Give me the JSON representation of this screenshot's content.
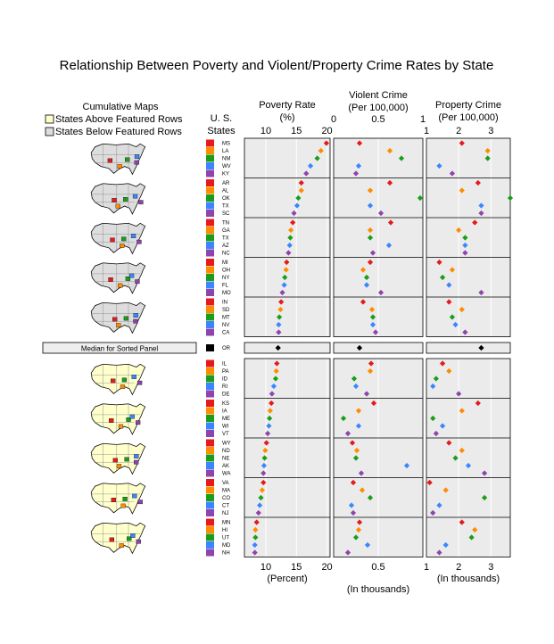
{
  "chart_data": {
    "type": "scatter",
    "title": "Relationship Between Poverty and Violent/Property Crime Rates by State",
    "maps_header": "Cumulative Maps",
    "legend": [
      {
        "label": "States Above Featured Rows",
        "color": "#ffffcc"
      },
      {
        "label": "States Below Featured Rows",
        "color": "#dddddd"
      }
    ],
    "states_header": [
      "U. S.",
      "States"
    ],
    "median_label": "Median for Sorted Panel",
    "row_colors": [
      "#e41a1c",
      "#ff8c00",
      "#1a9e1a",
      "#3a86ff",
      "#8e44ad"
    ],
    "median_color": "#000000",
    "panels": [
      {
        "key": "poverty",
        "title": [
          "Poverty Rate",
          "(%)"
        ],
        "xlabel": "(Percent)",
        "xlim": [
          6.5,
          20.5
        ],
        "ticks": [
          10,
          15,
          20
        ],
        "tick_labels": [
          "10",
          "15",
          "20"
        ],
        "axis_top": true,
        "axis_bottom": true
      },
      {
        "key": "violent",
        "title": [
          "Violent Crime",
          "(Per 100,000)"
        ],
        "xlabel": "(In thousands)",
        "xlim": [
          0,
          1
        ],
        "ticks": [
          0,
          0.5,
          1
        ],
        "tick_labels": [
          "0",
          "0.5",
          "1"
        ],
        "axis_top": true,
        "axis_bottom": true,
        "bottom_ticks": [
          0.5
        ],
        "bottom_tick_labels": [
          "0.5"
        ]
      },
      {
        "key": "property",
        "title": [
          "Property Crime",
          "(Per 100,000)"
        ],
        "xlabel": "(In thousands)",
        "xlim": [
          1,
          3.6
        ],
        "ticks": [
          1,
          2,
          3
        ],
        "tick_labels": [
          "1",
          "2",
          "3"
        ],
        "axis_top": true,
        "axis_bottom": true
      }
    ],
    "groups": [
      {
        "states": [
          "MS",
          "LA",
          "NM",
          "WV",
          "KY"
        ],
        "poverty": [
          19.9,
          19.0,
          18.4,
          17.3,
          16.6
        ],
        "violent": [
          0.29,
          0.63,
          0.76,
          0.28,
          0.25
        ],
        "property": [
          2.1,
          2.9,
          2.9,
          1.4,
          1.8
        ]
      },
      {
        "states": [
          "AR",
          "AL",
          "OK",
          "TX",
          "SC"
        ],
        "poverty": [
          15.8,
          15.8,
          15.3,
          15.1,
          14.6
        ],
        "violent": [
          0.63,
          0.41,
          0.97,
          0.41,
          0.53
        ],
        "property": [
          2.6,
          2.1,
          3.6,
          2.7,
          2.7
        ]
      },
      {
        "states": [
          "TN",
          "GA",
          "TX",
          "AZ",
          "NC"
        ],
        "poverty": [
          14.4,
          14.1,
          14.0,
          13.9,
          13.7
        ],
        "violent": [
          0.64,
          0.41,
          0.41,
          0.62,
          0.44
        ],
        "property": [
          2.5,
          2.0,
          2.2,
          2.2,
          2.2
        ]
      },
      {
        "states": [
          "MI",
          "OH",
          "NY",
          "FL",
          "MO"
        ],
        "poverty": [
          13.4,
          13.3,
          13.1,
          13.0,
          12.7
        ],
        "violent": [
          0.41,
          0.33,
          0.37,
          0.37,
          0.53
        ],
        "property": [
          1.4,
          1.8,
          1.5,
          1.7,
          2.7
        ]
      },
      {
        "states": [
          "IN",
          "SD",
          "MT",
          "NV",
          "CA"
        ],
        "poverty": [
          12.5,
          12.4,
          12.2,
          12.1,
          12.1
        ],
        "violent": [
          0.33,
          0.43,
          0.44,
          0.44,
          0.47
        ],
        "property": [
          1.7,
          2.1,
          1.8,
          1.9,
          2.2
        ]
      },
      {
        "states": [
          "IL",
          "PA",
          "ID",
          "RI",
          "DE"
        ],
        "poverty": [
          11.8,
          11.7,
          11.6,
          11.3,
          11.0
        ],
        "violent": [
          0.42,
          0.41,
          0.23,
          0.25,
          0.37
        ],
        "property": [
          1.5,
          1.7,
          1.3,
          1.2,
          2.0
        ]
      },
      {
        "states": [
          "KS",
          "IA",
          "ME",
          "WI",
          "VT"
        ],
        "poverty": [
          10.9,
          10.7,
          10.6,
          10.5,
          10.3
        ],
        "violent": [
          0.45,
          0.28,
          0.11,
          0.28,
          0.16
        ],
        "property": [
          2.6,
          2.1,
          1.2,
          1.5,
          1.3
        ]
      },
      {
        "states": [
          "WY",
          "ND",
          "NE",
          "AK",
          "WA"
        ],
        "poverty": [
          10.1,
          9.9,
          9.8,
          9.7,
          9.6
        ],
        "violent": [
          0.21,
          0.26,
          0.25,
          0.82,
          0.31
        ],
        "property": [
          1.7,
          2.1,
          1.9,
          2.3,
          2.8
        ]
      },
      {
        "states": [
          "VA",
          "MA",
          "CO",
          "CT",
          "NJ"
        ],
        "poverty": [
          9.6,
          9.4,
          9.2,
          9.0,
          8.8
        ],
        "violent": [
          0.22,
          0.32,
          0.41,
          0.2,
          0.22
        ],
        "property": [
          1.1,
          1.6,
          2.8,
          1.4,
          1.2
        ]
      },
      {
        "states": [
          "MN",
          "HI",
          "UT",
          "MD",
          "NH"
        ],
        "poverty": [
          8.5,
          8.3,
          8.3,
          8.2,
          8.2
        ],
        "violent": [
          0.29,
          0.28,
          0.25,
          0.38,
          0.16
        ],
        "property": [
          2.1,
          2.5,
          2.4,
          1.6,
          1.4
        ]
      }
    ],
    "median": {
      "state": "OR",
      "poverty": 12.0,
      "violent": 0.29,
      "property": 2.7
    }
  }
}
